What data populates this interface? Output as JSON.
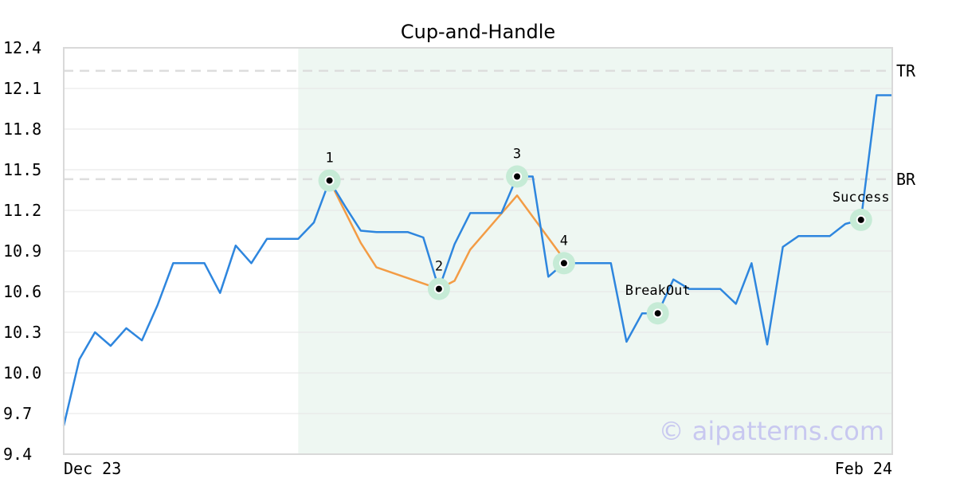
{
  "chart_data": {
    "type": "line",
    "title": "Cup-and-Handle",
    "xlabel": "",
    "ylabel": "",
    "ylim": [
      9.4,
      12.4
    ],
    "grid": true,
    "y_ticks": [
      "12.4",
      "12.1",
      "11.8",
      "11.5",
      "11.2",
      "10.9",
      "10.6",
      "10.3",
      "10.0",
      "9.7",
      "9.4"
    ],
    "x_tick_labels": [
      "Dec 23",
      "Feb 24"
    ],
    "series": [
      {
        "color": "#2e86de",
        "values": [
          9.61,
          10.1,
          10.3,
          10.2,
          10.33,
          10.24,
          10.5,
          10.81,
          10.81,
          10.81,
          10.59,
          10.94,
          10.81,
          10.99,
          10.99,
          10.99,
          11.11,
          11.42,
          11.23,
          11.05,
          11.04,
          11.04,
          11.04,
          11.0,
          10.62,
          10.95,
          11.18,
          11.18,
          11.18,
          11.45,
          11.45,
          10.71,
          10.81,
          10.81,
          10.81,
          10.81,
          10.23,
          10.44,
          10.44,
          10.69,
          10.62,
          10.62,
          10.62,
          10.51,
          10.81,
          10.21,
          10.93,
          11.01,
          11.01,
          11.01,
          11.1,
          11.13,
          12.05,
          12.05
        ]
      },
      {
        "color": "#f39c45",
        "pattern_points": [
          [
            17,
            11.42
          ],
          [
            19,
            10.96
          ],
          [
            20,
            10.78
          ],
          [
            24,
            10.62
          ],
          [
            25,
            10.68
          ],
          [
            26,
            10.91
          ],
          [
            29,
            11.31
          ],
          [
            32,
            10.84
          ]
        ]
      }
    ],
    "markers": [
      {
        "label": "1",
        "index": 17,
        "value": 11.42
      },
      {
        "label": "2",
        "index": 24,
        "value": 10.62
      },
      {
        "label": "3",
        "index": 29,
        "value": 11.45
      },
      {
        "label": "4",
        "index": 32,
        "value": 10.81
      },
      {
        "label": "BreakOut",
        "index": 38,
        "value": 10.44
      },
      {
        "label": "Success",
        "index": 51,
        "value": 11.13
      }
    ],
    "hlines": [
      {
        "label": "TR",
        "value": 12.23
      },
      {
        "label": "BR",
        "value": 11.43
      }
    ],
    "shaded_index_range": [
      15,
      53
    ],
    "colors": {
      "price": "#2e86de",
      "pattern": "#f39c45",
      "shade": "#eef7f2",
      "marker_halo": "#c6ebd6",
      "guide": "#dddddd",
      "grid": "#e6e6e6",
      "frame": "#d9d9d9"
    }
  },
  "watermark": "© aipatterns.com"
}
